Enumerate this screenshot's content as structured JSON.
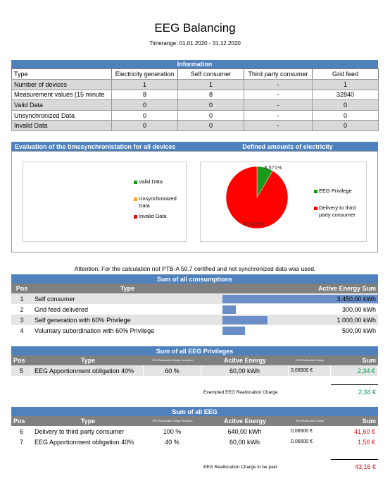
{
  "header": {
    "title": "EEG Balancing",
    "timerange": "Timerange: 01.01.2020 - 31.12.2020"
  },
  "information": {
    "title": "Information",
    "columns": [
      "Type",
      "Electricity generation",
      "Self consumer",
      "Third party consumer",
      "Grid feed"
    ],
    "rows": [
      [
        "Number of devices",
        1,
        1,
        "-",
        1
      ],
      [
        "Measurement values (15 minute",
        8,
        8,
        "-",
        32840
      ],
      [
        "Valid Data",
        0,
        0,
        "-",
        0
      ],
      [
        "Unsynchronized Data",
        0,
        0,
        "-",
        0
      ],
      [
        "Invalid Data",
        0,
        0,
        "-",
        0
      ]
    ]
  },
  "sync_panel": {
    "title": "Evaluation of the timesynchronistation for all devices",
    "legend": [
      {
        "name": "Valid Data",
        "color": "#1a9a1a"
      },
      {
        "name": "Unsynchronized Data",
        "color": "#f5a623"
      },
      {
        "name": "Invalid Data",
        "color": "#e01010"
      }
    ]
  },
  "chart_data": {
    "type": "pie",
    "title": "Defined amounts of electricity",
    "categories": [
      "EEG Privilege",
      "Delivery to third party consumer"
    ],
    "values": [
      8.571,
      91.429
    ],
    "value_labels": [
      "8,571%",
      "91,429%"
    ],
    "colors": [
      "#1a9a1a",
      "#ff0000"
    ]
  },
  "attention": "Attention: For the calculation not PTB-A 50.7 certified and not synchronized data was used.",
  "consumptions": {
    "title": "Sum of all consumptions",
    "columns": [
      "Pos",
      "Type",
      "Active Energy Sum"
    ],
    "rows": [
      {
        "pos": 1,
        "type": "Self consumer",
        "value": 3450,
        "label": "3.450,00 kWh"
      },
      {
        "pos": 2,
        "type": "Grid feed delivered",
        "value": 300,
        "label": "300,00 kWh"
      },
      {
        "pos": 3,
        "type": "Self generation with 60% Privilege",
        "value": 1000,
        "label": "1.000,00 kWh"
      },
      {
        "pos": 4,
        "type": "Voluntary subordination with 60% Privilege",
        "value": 500,
        "label": "500,00 kWh"
      }
    ]
  },
  "privileges": {
    "title": "Sum of all EEG Privileges",
    "columns": [
      "Pos",
      "Type",
      "EEG Reallocation Charge Exemption",
      "Acitve Energy",
      "EEG Reallocation Charge",
      "Sum"
    ],
    "rows": [
      [
        5,
        "EEG Apportionment obligation 40%",
        "60 %",
        "60,00 kWh",
        "0,06500 €",
        "2,34 €"
      ]
    ],
    "total_label": "Exempted EEG Reallocation Charge",
    "total": "2,34 €"
  },
  "eeg_sum": {
    "title": "Sum of all EEG",
    "columns": [
      "Pos",
      "Type",
      "EEG Reallocation Charge Obligation",
      "Acitve Energy",
      "EEG Reallocation Charge",
      "Sum"
    ],
    "rows": [
      [
        6,
        "Delivery to third party consumer",
        "100 %",
        "640,00 kWh",
        "0,06500 €",
        "41,60 €"
      ],
      [
        7,
        "EEG Apportionment obligation 40%",
        "40 %",
        "60,00 kWh",
        "0,06500 €",
        "1,56 €"
      ]
    ],
    "total_label": "EEG Reallocation Charge to be paid",
    "total": "43,16 €"
  }
}
